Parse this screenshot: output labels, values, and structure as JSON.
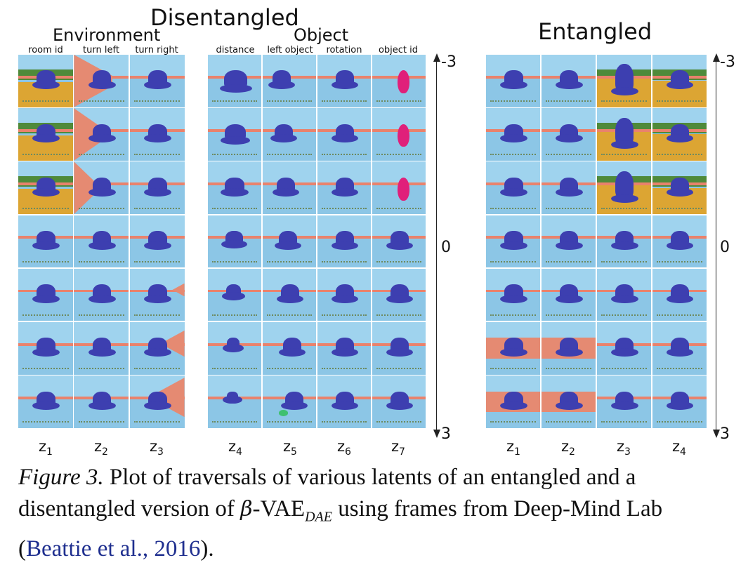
{
  "headings": {
    "disentangled": "Disentangled",
    "environment": "Environment",
    "object": "Object",
    "entangled": "Entangled"
  },
  "column_labels": {
    "environment": [
      "room id",
      "turn left",
      "turn right"
    ],
    "object": [
      "distance",
      "left object",
      "rotation",
      "object id"
    ]
  },
  "latents": {
    "disentangled": [
      {
        "base": "z",
        "sub": "1"
      },
      {
        "base": "z",
        "sub": "2"
      },
      {
        "base": "z",
        "sub": "3"
      },
      {
        "base": "z",
        "sub": "4"
      },
      {
        "base": "z",
        "sub": "5"
      },
      {
        "base": "z",
        "sub": "6"
      },
      {
        "base": "z",
        "sub": "7"
      }
    ],
    "entangled": [
      {
        "base": "z",
        "sub": "1"
      },
      {
        "base": "z",
        "sub": "2"
      },
      {
        "base": "z",
        "sub": "3"
      },
      {
        "base": "z",
        "sub": "4"
      }
    ]
  },
  "axis_ticks": {
    "top": "-3",
    "middle": "0",
    "bottom": "3"
  },
  "traversal_rows": 7,
  "caption": {
    "figure_label": "Figure 3.",
    "text_1": " Plot of traversals of various latents of an entangled and a disentangled version of ",
    "beta": "β",
    "vae": "-VAE",
    "vae_sub": "DAE",
    "text_2": " using frames from Deep-Mind Lab (",
    "citation": "Beattie et al., 2016",
    "text_3": ")."
  },
  "colors": {
    "sky": "#9fd3ee",
    "floor": "#8cc6e6",
    "wall": "#e58a72",
    "object": "#3d3fb0",
    "pink_object": "#e0207a",
    "yellow_floor": "#dca533",
    "citation": "#1f2f8f"
  }
}
